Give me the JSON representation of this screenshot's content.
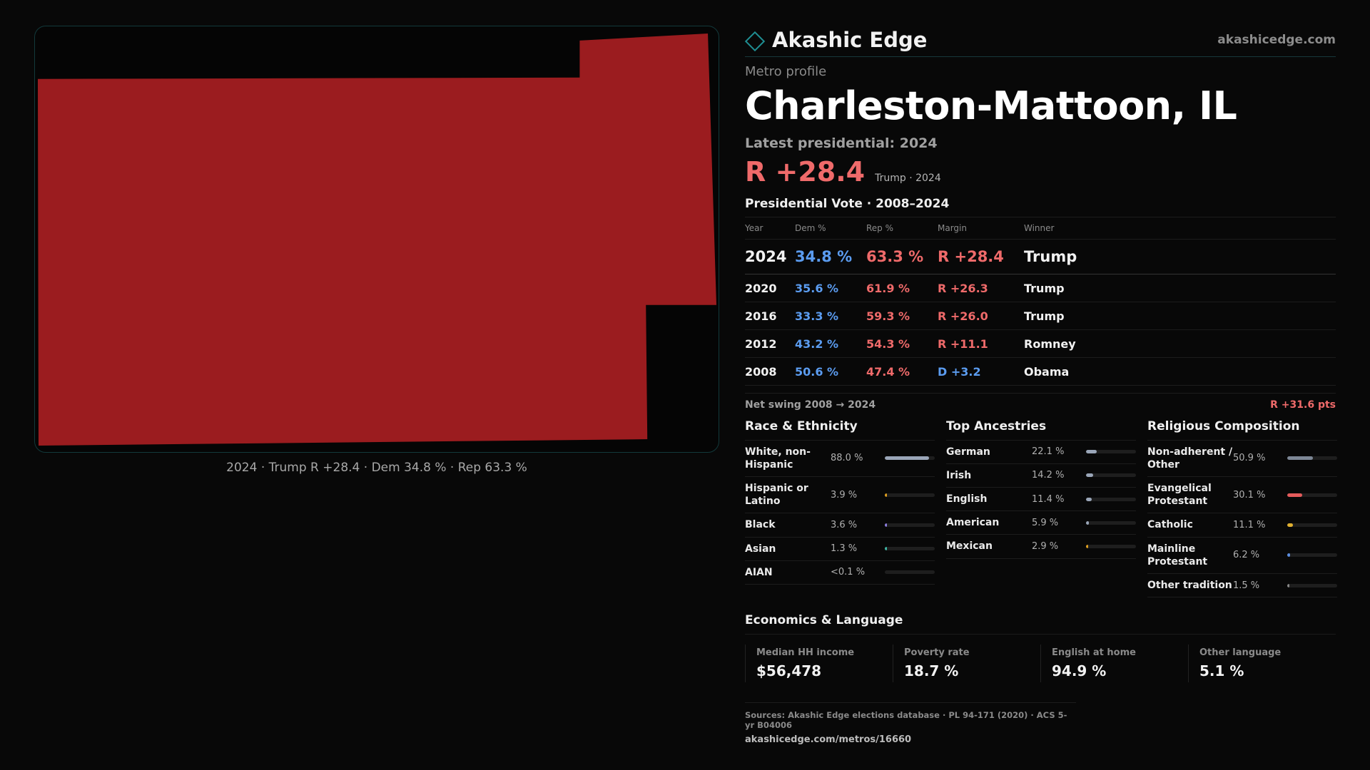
{
  "brand": {
    "name": "Akashic Edge",
    "url": "akashicedge.com"
  },
  "header": {
    "subtitle": "Metro profile",
    "title": "Charleston-Mattoon, IL",
    "latest_label": "Latest presidential: 2024",
    "big_margin": "R +28.4",
    "margin_note": "Trump · 2024"
  },
  "map": {
    "fill_color": "#9b1c1f",
    "caption": "2024 · Trump R +28.4 · Dem 34.8 % · Rep 63.3 %"
  },
  "votes": {
    "title": "Presidential Vote · 2008–2024",
    "headers": {
      "year": "Year",
      "dem": "Dem %",
      "rep": "Rep %",
      "margin": "Margin",
      "winner": "Winner"
    },
    "rows": [
      {
        "year": "2024",
        "dem": "34.8 %",
        "rep": "63.3 %",
        "margin": "R +28.4",
        "party": "R",
        "winner": "Trump"
      },
      {
        "year": "2020",
        "dem": "35.6 %",
        "rep": "61.9 %",
        "margin": "R +26.3",
        "party": "R",
        "winner": "Trump"
      },
      {
        "year": "2016",
        "dem": "33.3 %",
        "rep": "59.3 %",
        "margin": "R +26.0",
        "party": "R",
        "winner": "Trump"
      },
      {
        "year": "2012",
        "dem": "43.2 %",
        "rep": "54.3 %",
        "margin": "R +11.1",
        "party": "R",
        "winner": "Romney"
      },
      {
        "year": "2008",
        "dem": "50.6 %",
        "rep": "47.4 %",
        "margin": "D +3.2",
        "party": "D",
        "winner": "Obama"
      }
    ]
  },
  "swing": {
    "label": "Net swing 2008 → 2024",
    "value": "R +31.6 pts"
  },
  "race": {
    "title": "Race & Ethnicity",
    "items": [
      {
        "label": "White, non-Hispanic",
        "value": "88.0 %",
        "fraction": 0.88,
        "color": "#9aa6b8"
      },
      {
        "label": "Hispanic or Latino",
        "value": "3.9 %",
        "fraction": 0.039,
        "color": "#e0a020"
      },
      {
        "label": "Black",
        "value": "3.6 %",
        "fraction": 0.036,
        "color": "#8d7fe0"
      },
      {
        "label": "Asian",
        "value": "1.3 %",
        "fraction": 0.013,
        "color": "#3fb8a6"
      },
      {
        "label": "AIAN",
        "value": "<0.1 %",
        "fraction": 0.0,
        "color": "#888888"
      }
    ]
  },
  "ancestry": {
    "title": "Top Ancestries",
    "items": [
      {
        "label": "German",
        "value": "22.1 %",
        "fraction": 0.221,
        "color": "#9aa6b8"
      },
      {
        "label": "Irish",
        "value": "14.2 %",
        "fraction": 0.142,
        "color": "#9aa6b8"
      },
      {
        "label": "English",
        "value": "11.4 %",
        "fraction": 0.114,
        "color": "#9aa6b8"
      },
      {
        "label": "American",
        "value": "5.9 %",
        "fraction": 0.059,
        "color": "#9aa6b8"
      },
      {
        "label": "Mexican",
        "value": "2.9 %",
        "fraction": 0.029,
        "color": "#e0a020"
      }
    ]
  },
  "religion": {
    "title": "Religious Composition",
    "items": [
      {
        "label": "Non-adherent / Other",
        "value": "50.9 %",
        "fraction": 0.509,
        "color": "#7d8796"
      },
      {
        "label": "Evangelical Protestant",
        "value": "30.1 %",
        "fraction": 0.301,
        "color": "#e45b5b"
      },
      {
        "label": "Catholic",
        "value": "11.1 %",
        "fraction": 0.111,
        "color": "#e0b030"
      },
      {
        "label": "Mainline Protestant",
        "value": "6.2 %",
        "fraction": 0.062,
        "color": "#5b8ee0"
      },
      {
        "label": "Other tradition",
        "value": "1.5 %",
        "fraction": 0.015,
        "color": "#888888"
      }
    ]
  },
  "economics": {
    "title": "Economics & Language",
    "cards": [
      {
        "label": "Median HH income",
        "value": "$56,478"
      },
      {
        "label": "Poverty rate",
        "value": "18.7 %"
      },
      {
        "label": "English at home",
        "value": "94.9 %"
      },
      {
        "label": "Other language",
        "value": "5.1 %"
      }
    ]
  },
  "sources": {
    "text": "Sources: Akashic Edge elections database · PL 94-171 (2020) · ACS 5-yr B04006",
    "url": "akashicedge.com/metros/16660"
  }
}
